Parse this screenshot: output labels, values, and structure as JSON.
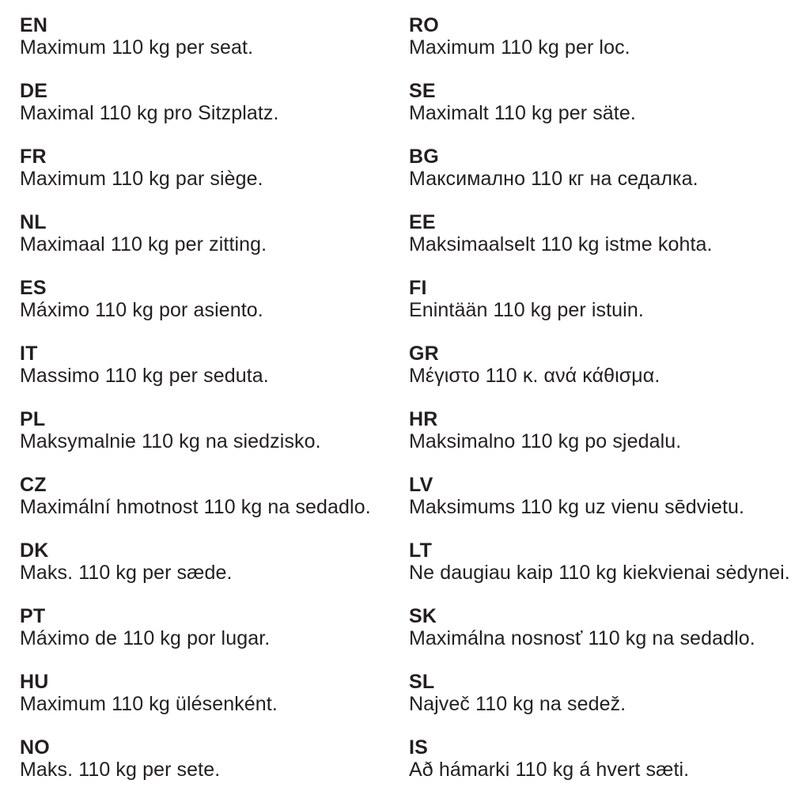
{
  "page": {
    "background_color": "#ffffff",
    "text_color": "#221f1f",
    "description": "Multilingual maximum seat load notice"
  },
  "columns": {
    "left": [
      {
        "code": "EN",
        "text": "Maximum 110 kg per seat."
      },
      {
        "code": "DE",
        "text": "Maximal 110 kg pro Sitzplatz."
      },
      {
        "code": "FR",
        "text": "Maximum 110 kg par siège."
      },
      {
        "code": "NL",
        "text": "Maximaal 110 kg per zitting."
      },
      {
        "code": "ES",
        "text": "Máximo 110 kg por asiento."
      },
      {
        "code": "IT",
        "text": "Massimo 110 kg per seduta."
      },
      {
        "code": "PL",
        "text": "Maksymalnie 110 kg na siedzisko."
      },
      {
        "code": "CZ",
        "text": "Maximální hmotnost 110 kg na sedadlo."
      },
      {
        "code": "DK",
        "text": "Maks. 110 kg per sæde."
      },
      {
        "code": "PT",
        "text": "Máximo de 110 kg por lugar."
      },
      {
        "code": "HU",
        "text": "Maximum 110 kg ülésenként."
      },
      {
        "code": "NO",
        "text": "Maks. 110 kg per sete."
      }
    ],
    "right": [
      {
        "code": "RO",
        "text": "Maximum 110 kg per loc."
      },
      {
        "code": "SE",
        "text": "Maximalt 110 kg per säte."
      },
      {
        "code": "BG",
        "text": "Максимално 110 кг на седалка."
      },
      {
        "code": "EE",
        "text": "Maksimaalselt 110 kg istme kohta."
      },
      {
        "code": "FI",
        "text": "Enintään 110 kg per istuin."
      },
      {
        "code": "GR",
        "text": "Μέγιστο 110 κ. ανά κάθισμα."
      },
      {
        "code": "HR",
        "text": "Maksimalno 110 kg po sjedalu."
      },
      {
        "code": "LV",
        "text": "Maksimums 110 kg uz vienu sēdvietu."
      },
      {
        "code": "LT",
        "text": "Ne daugiau kaip 110 kg kiekvienai sėdynei."
      },
      {
        "code": "SK",
        "text": "Maximálna nosnosť 110 kg na sedadlo."
      },
      {
        "code": "SL",
        "text": "Največ 110 kg na sedež."
      },
      {
        "code": "IS",
        "text": "Að hámarki 110 kg á hvert sæti."
      }
    ]
  }
}
